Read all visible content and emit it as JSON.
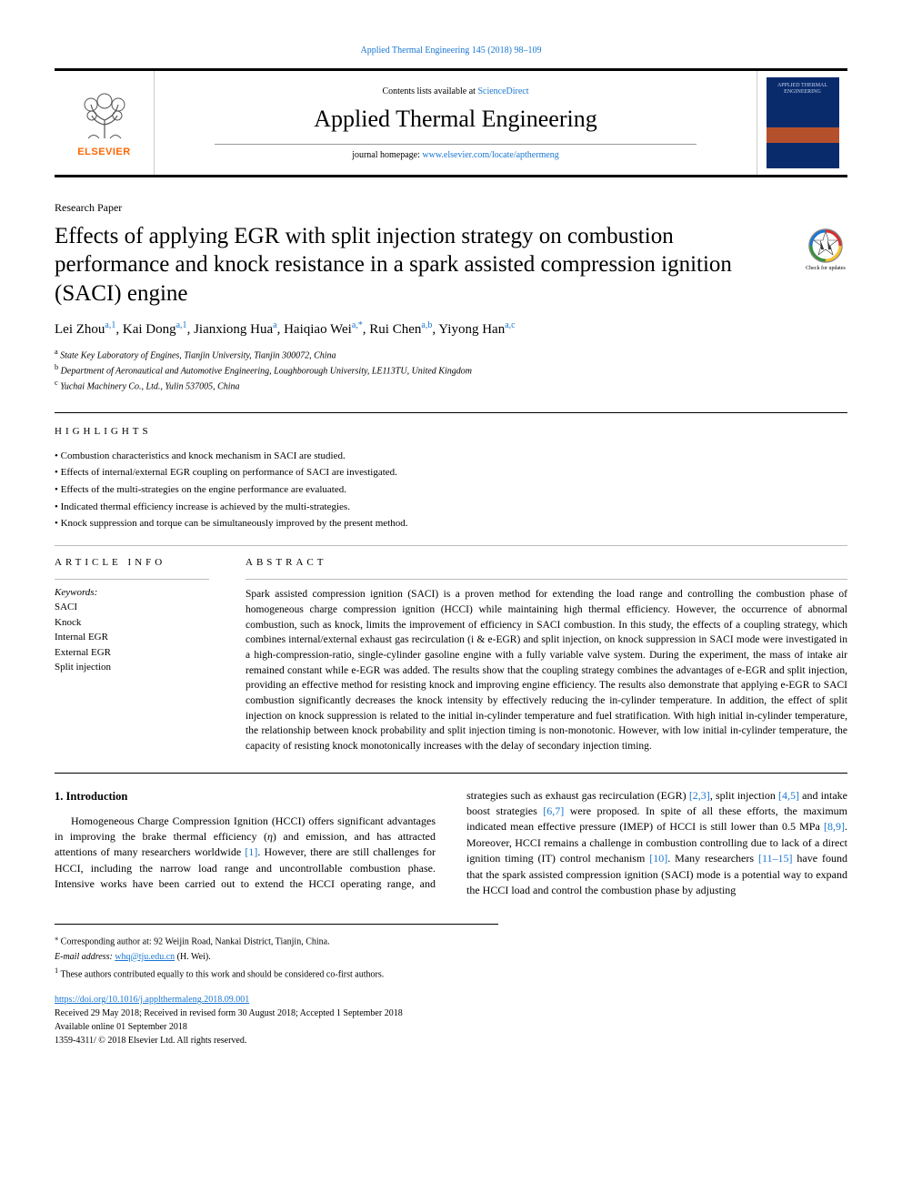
{
  "topLink": "Applied Thermal Engineering 145 (2018) 98–109",
  "header": {
    "contentsPrefix": "Contents lists available at ",
    "contentsLinkText": "ScienceDirect",
    "journalName": "Applied Thermal Engineering",
    "hpPrefix": "journal homepage: ",
    "hpLinkText": "www.elsevier.com/locate/apthermeng",
    "publisher": "ELSEVIER",
    "coverTitle": "APPLIED THERMAL ENGINEERING"
  },
  "paperType": "Research Paper",
  "title": "Effects of applying EGR with split injection strategy on combustion performance and knock resistance in a spark assisted compression ignition (SACI) engine",
  "updatesCaption": "Check for updates",
  "authorsHtml": "Lei Zhou<sup>a,1</sup>, Kai Dong<sup>a,1</sup>, Jianxiong Hua<sup>a</sup>, Haiqiao Wei<sup>a,*</sup>, Rui Chen<sup>a,b</sup>, Yiyong Han<sup>a,c</sup>",
  "affiliations": [
    {
      "mark": "a",
      "text": "State Key Laboratory of Engines, Tianjin University, Tianjin 300072, China"
    },
    {
      "mark": "b",
      "text": "Department of Aeronautical and Automotive Engineering, Loughborough University, LE113TU, United Kingdom"
    },
    {
      "mark": "c",
      "text": "Yuchai Machinery Co., Ltd., Yulin 537005, China"
    }
  ],
  "highlightsLabel": "HIGHLIGHTS",
  "highlights": [
    "Combustion characteristics and knock mechanism in SACI are studied.",
    "Effects of internal/external EGR coupling on performance of SACI are investigated.",
    "Effects of the multi-strategies on the engine performance are evaluated.",
    "Indicated thermal efficiency increase is achieved by the multi-strategies.",
    "Knock suppression and torque can be simultaneously improved by the present method."
  ],
  "articleInfoLabel": "ARTICLE INFO",
  "abstractLabel": "ABSTRACT",
  "keywordsHeading": "Keywords:",
  "keywords": [
    "SACI",
    "Knock",
    "Internal EGR",
    "External EGR",
    "Split injection"
  ],
  "abstract": "Spark assisted compression ignition (SACI) is a proven method for extending the load range and controlling the combustion phase of homogeneous charge compression ignition (HCCI) while maintaining high thermal efficiency. However, the occurrence of abnormal combustion, such as knock, limits the improvement of efficiency in SACI combustion. In this study, the effects of a coupling strategy, which combines internal/external exhaust gas recirculation (i & e-EGR) and split injection, on knock suppression in SACI mode were investigated in a high-compression-ratio, single-cylinder gasoline engine with a fully variable valve system. During the experiment, the mass of intake air remained constant while e-EGR was added. The results show that the coupling strategy combines the advantages of e-EGR and split injection, providing an effective method for resisting knock and improving engine efficiency. The results also demonstrate that applying e-EGR to SACI combustion significantly decreases the knock intensity by effectively reducing the in-cylinder temperature. In addition, the effect of split injection on knock suppression is related to the initial in-cylinder temperature and fuel stratification. With high initial in-cylinder temperature, the relationship between knock probability and split injection timing is non-monotonic. However, with low initial in-cylinder temperature, the capacity of resisting knock monotonically increases with the delay of secondary injection timing.",
  "intro": {
    "heading": "1. Introduction",
    "bodyHtml": "Homogeneous Charge Compression Ignition (HCCI) offers significant advantages in improving the brake thermal efficiency (<i>η</i>) and emission, and has attracted attentions of many researchers worldwide <span class=\"cite\">[1]</span>. However, there are still challenges for HCCI, including the narrow load range and uncontrollable combustion phase. Intensive works have been carried out to extend the HCCI operating range, and strategies such as exhaust gas recirculation (EGR) <span class=\"cite\">[2,3]</span>, split injection <span class=\"cite\">[4,5]</span> and intake boost strategies <span class=\"cite\">[6,7]</span> were proposed. In spite of all these efforts, the maximum indicated mean effective pressure (IMEP) of HCCI is still lower than 0.5 MPa <span class=\"cite\">[8,9]</span>. Moreover, HCCI remains a challenge in combustion controlling due to lack of a direct ignition timing (IT) control mechanism <span class=\"cite\">[10]</span>. Many researchers <span class=\"cite\">[11–15]</span> have found that the spark assisted compression ignition (SACI) mode is a potential way to expand the HCCI load and control the combustion phase by adjusting"
  },
  "footnotes": {
    "corr": "Corresponding author at: 92 Weijin Road, Nankai District, Tianjin, China.",
    "emailLabel": "E-mail address: ",
    "email": "whq@tju.edu.cn",
    "emailSuffix": " (H. Wei).",
    "equal": "These authors contributed equally to this work and should be considered co-first authors."
  },
  "bottom": {
    "doi": "https://doi.org/10.1016/j.applthermaleng.2018.09.001",
    "received": "Received 29 May 2018; Received in revised form 30 August 2018; Accepted 1 September 2018",
    "available": "Available online 01 September 2018",
    "copyright": "1359-4311/ © 2018 Elsevier Ltd. All rights reserved."
  },
  "colors": {
    "link": "#1976d2",
    "elsevierOrange": "#ff6600",
    "coverBlue": "#0a2b6b",
    "coverOrange": "#b5502c"
  }
}
